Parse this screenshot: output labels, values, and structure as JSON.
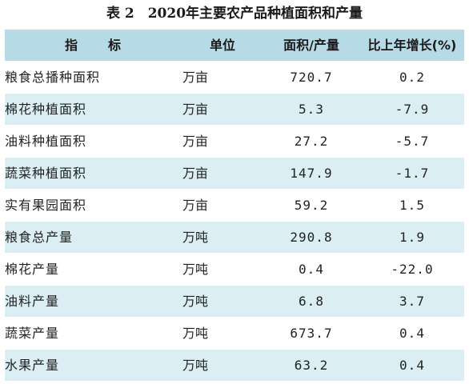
{
  "caption": "表 2　2020年主要农产品种植面积和产量",
  "headers": {
    "name": "指　　标",
    "unit": "单位",
    "value": "面积/产量",
    "growth": "比上年增长(%)"
  },
  "rows": [
    {
      "name": "粮食总播种面积",
      "unit": "万亩",
      "value": "720.7",
      "growth": "0.2"
    },
    {
      "name": "棉花种植面积",
      "unit": "万亩",
      "value": "5.3",
      "growth": "-7.9"
    },
    {
      "name": "油料种植面积",
      "unit": "万亩",
      "value": "27.2",
      "growth": "-5.7"
    },
    {
      "name": "蔬菜种植面积",
      "unit": "万亩",
      "value": "147.9",
      "growth": "-1.7"
    },
    {
      "name": "实有果园面积",
      "unit": "万亩",
      "value": "59.2",
      "growth": "1.5"
    },
    {
      "name": "粮食总产量",
      "unit": "万吨",
      "value": "290.8",
      "growth": "1.9"
    },
    {
      "name": "棉花产量",
      "unit": "万吨",
      "value": "0.4",
      "growth": "-22.0"
    },
    {
      "name": "油料产量",
      "unit": "万吨",
      "value": "6.8",
      "growth": "3.7"
    },
    {
      "name": "蔬菜产量",
      "unit": "万吨",
      "value": "673.7",
      "growth": "0.4"
    },
    {
      "name": "水果产量",
      "unit": "万吨",
      "value": "63.2",
      "growth": "0.4"
    }
  ],
  "colors": {
    "header_bg": "#b7dbe6",
    "band_bg": "#daeef3",
    "row_bg": "#ffffff"
  }
}
